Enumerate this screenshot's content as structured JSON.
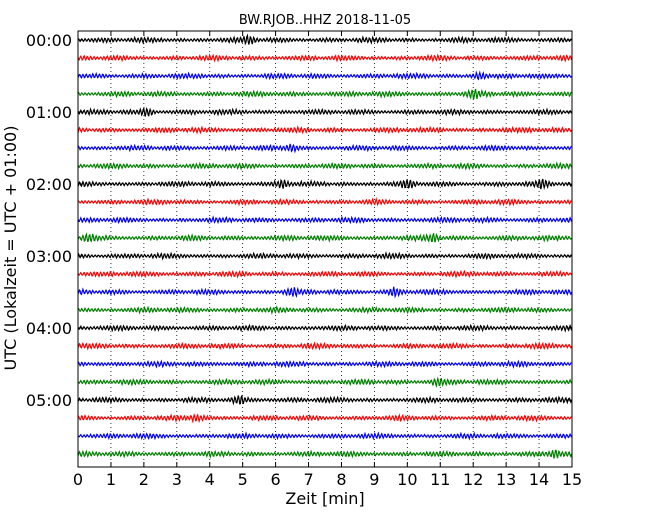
{
  "chart_data": {
    "type": "line",
    "title": "BW.RJOB..HHZ 2018-11-05",
    "xlabel": "Zeit  [min]",
    "ylabel": "UTC (Lokalzeit = UTC + 01:00)",
    "xlim": [
      0,
      15
    ],
    "x_ticks": [
      "0",
      "1",
      "2",
      "3",
      "4",
      "5",
      "6",
      "7",
      "8",
      "9",
      "10",
      "11",
      "12",
      "13",
      "14",
      "15"
    ],
    "y_tick_labels": [
      "00:00",
      "01:00",
      "02:00",
      "03:00",
      "04:00",
      "05:00"
    ],
    "trace_interval_min": 15,
    "trace_start_times": [
      "00:00",
      "00:15",
      "00:30",
      "00:45",
      "01:00",
      "01:15",
      "01:30",
      "01:45",
      "02:00",
      "02:15",
      "02:30",
      "02:45",
      "03:00",
      "03:15",
      "03:30",
      "03:45",
      "04:00",
      "04:15",
      "04:30",
      "04:45",
      "05:00",
      "05:15",
      "05:30",
      "05:45"
    ],
    "trace_colors": [
      "#000000",
      "#ff0000",
      "#0000ff",
      "#008000"
    ],
    "grid": "vertical-dotted",
    "events": [
      {
        "trace": "00:00",
        "x": 5.2
      },
      {
        "trace": "00:30",
        "x": 12.2
      },
      {
        "trace": "00:45",
        "x": 12.0
      },
      {
        "trace": "01:00",
        "x": 2.1
      },
      {
        "trace": "01:30",
        "x": 6.5
      },
      {
        "trace": "02:00",
        "x": 6.2
      },
      {
        "trace": "02:00",
        "x": 10.0
      },
      {
        "trace": "02:00",
        "x": 14.1
      },
      {
        "trace": "02:45",
        "x": 0.3
      },
      {
        "trace": "02:45",
        "x": 10.8
      },
      {
        "trace": "03:30",
        "x": 6.5
      },
      {
        "trace": "03:30",
        "x": 9.6
      },
      {
        "trace": "04:45",
        "x": 10.9
      },
      {
        "trace": "05:00",
        "x": 4.9
      },
      {
        "trace": "05:15",
        "x": 3.6
      },
      {
        "trace": "05:45",
        "x": 14.5
      }
    ]
  }
}
